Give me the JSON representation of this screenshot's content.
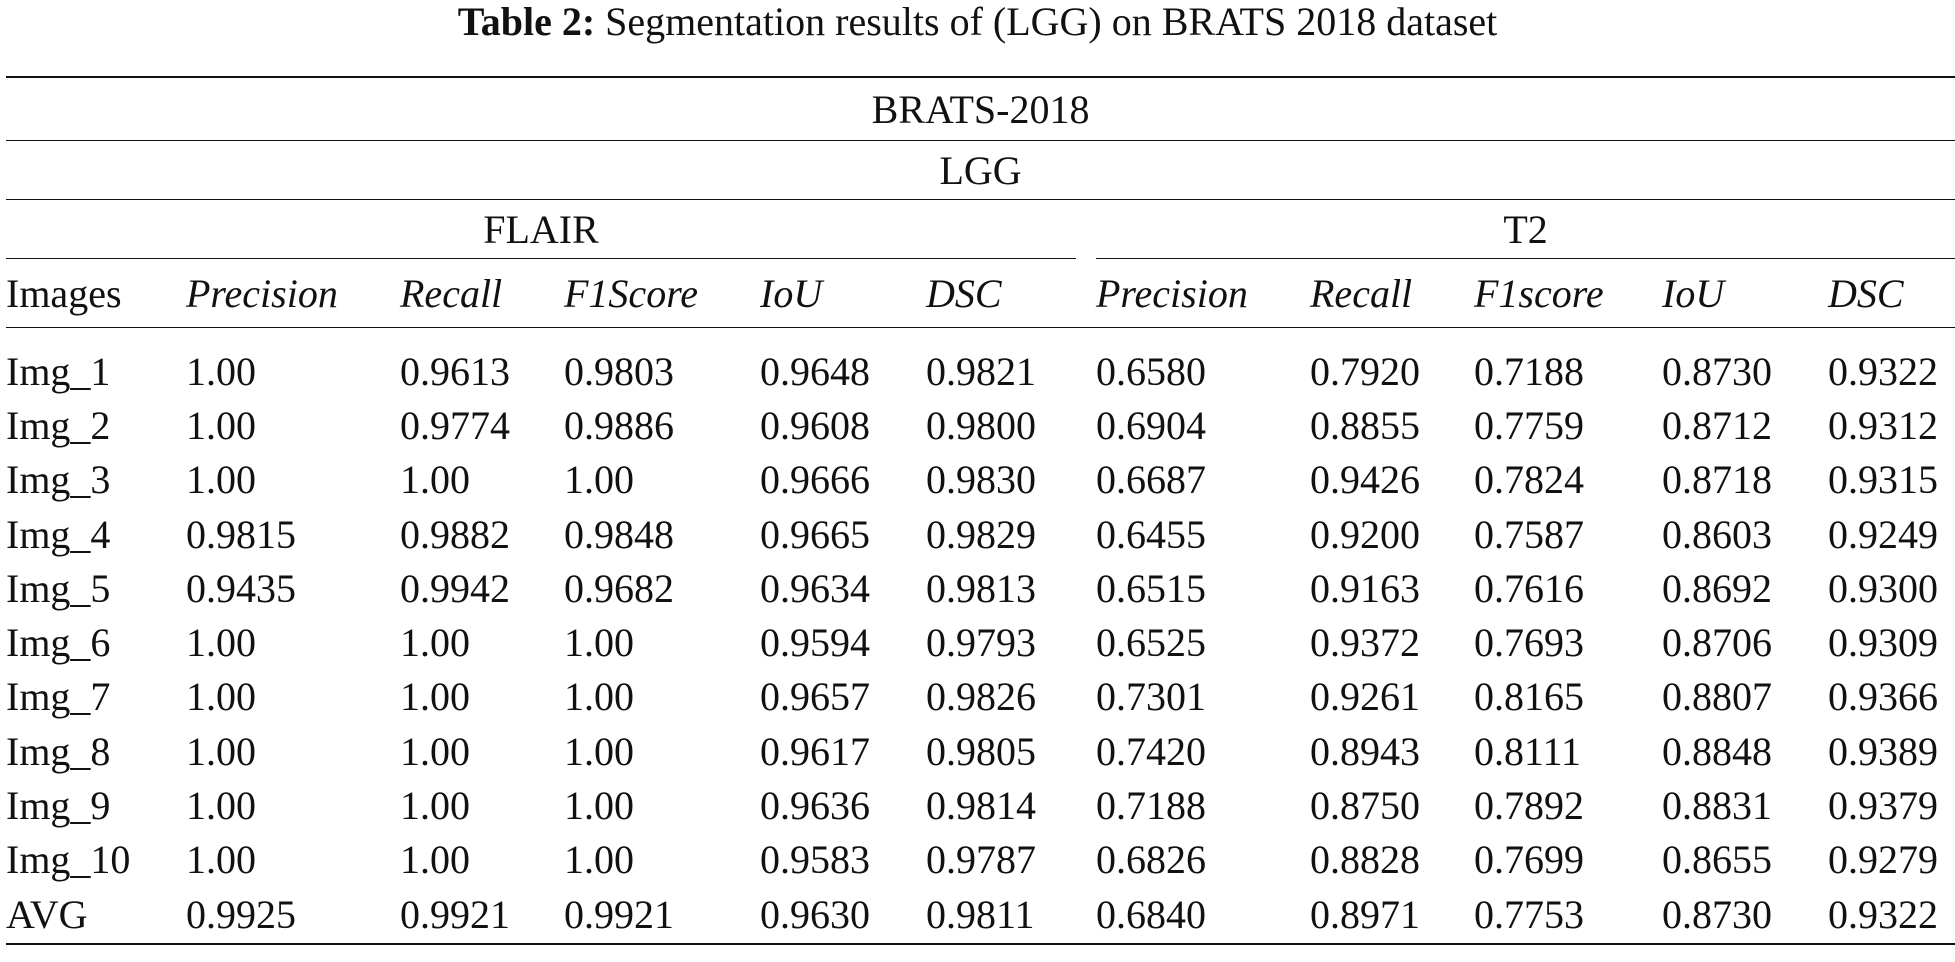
{
  "caption": {
    "label": "Table 2:",
    "text": "Segmentation results of (LGG) on BRATS 2018 dataset"
  },
  "table": {
    "dataset": "BRATS-2018",
    "grade": "LGG",
    "groups": [
      {
        "name": "FLAIR",
        "metrics": [
          "Precision",
          "Recall",
          "F1Score",
          "IoU",
          "DSC"
        ]
      },
      {
        "name": "T2",
        "metrics": [
          "Precision",
          "Recall",
          "F1score",
          "IoU",
          "DSC"
        ]
      }
    ],
    "row_header": "Images",
    "rows": [
      {
        "image": "Img_1",
        "flair": [
          "1.00",
          "0.9613",
          "0.9803",
          "0.9648",
          "0.9821"
        ],
        "t2": [
          "0.6580",
          "0.7920",
          "0.7188",
          "0.8730",
          "0.9322"
        ]
      },
      {
        "image": "Img_2",
        "flair": [
          "1.00",
          "0.9774",
          "0.9886",
          "0.9608",
          "0.9800"
        ],
        "t2": [
          "0.6904",
          "0.8855",
          "0.7759",
          "0.8712",
          "0.9312"
        ]
      },
      {
        "image": "Img_3",
        "flair": [
          "1.00",
          "1.00",
          "1.00",
          "0.9666",
          "0.9830"
        ],
        "t2": [
          "0.6687",
          "0.9426",
          "0.7824",
          "0.8718",
          "0.9315"
        ]
      },
      {
        "image": "Img_4",
        "flair": [
          "0.9815",
          "0.9882",
          "0.9848",
          "0.9665",
          "0.9829"
        ],
        "t2": [
          "0.6455",
          "0.9200",
          "0.7587",
          "0.8603",
          "0.9249"
        ]
      },
      {
        "image": "Img_5",
        "flair": [
          "0.9435",
          "0.9942",
          "0.9682",
          "0.9634",
          "0.9813"
        ],
        "t2": [
          "0.6515",
          "0.9163",
          "0.7616",
          "0.8692",
          "0.9300"
        ]
      },
      {
        "image": "Img_6",
        "flair": [
          "1.00",
          "1.00",
          "1.00",
          "0.9594",
          "0.9793"
        ],
        "t2": [
          "0.6525",
          "0.9372",
          "0.7693",
          "0.8706",
          "0.9309"
        ]
      },
      {
        "image": "Img_7",
        "flair": [
          "1.00",
          "1.00",
          "1.00",
          "0.9657",
          "0.9826"
        ],
        "t2": [
          "0.7301",
          "0.9261",
          "0.8165",
          "0.8807",
          "0.9366"
        ]
      },
      {
        "image": "Img_8",
        "flair": [
          "1.00",
          "1.00",
          "1.00",
          "0.9617",
          "0.9805"
        ],
        "t2": [
          "0.7420",
          "0.8943",
          "0.8111",
          "0.8848",
          "0.9389"
        ]
      },
      {
        "image": "Img_9",
        "flair": [
          "1.00",
          "1.00",
          "1.00",
          "0.9636",
          "0.9814"
        ],
        "t2": [
          "0.7188",
          "0.8750",
          "0.7892",
          "0.8831",
          "0.9379"
        ]
      },
      {
        "image": "Img_10",
        "flair": [
          "1.00",
          "1.00",
          "1.00",
          "0.9583",
          "0.9787"
        ],
        "t2": [
          "0.6826",
          "0.8828",
          "0.7699",
          "0.8655",
          "0.9279"
        ]
      },
      {
        "image": "AVG",
        "flair": [
          "0.9925",
          "0.9921",
          "0.9921",
          "0.9630",
          "0.9811"
        ],
        "t2": [
          "0.6840",
          "0.8971",
          "0.7753",
          "0.8730",
          "0.9322"
        ]
      }
    ]
  }
}
